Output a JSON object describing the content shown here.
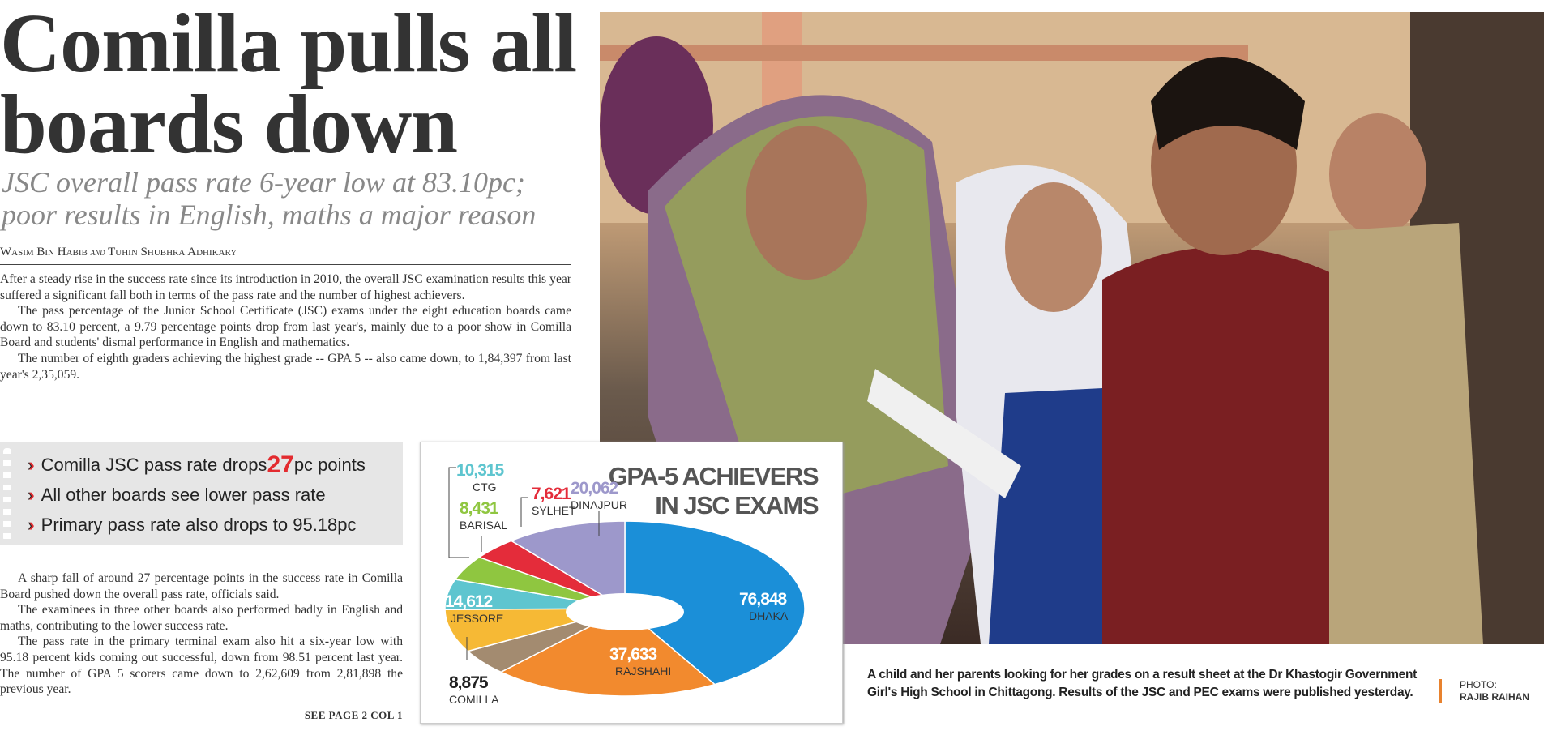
{
  "article": {
    "headline_line1": "Comilla pulls all",
    "headline_line2": "boards down",
    "subhead_line1": "JSC overall pass rate 6-year low at 83.10pc;",
    "subhead_line2": "poor results in English, maths a major reason",
    "byline": {
      "author1": "Wasim Bin Habib",
      "and": "and",
      "author2": "Tuhin Shubhra Adhikary"
    },
    "body_top": [
      "After a steady rise in the success rate since its introduction in 2010, the overall JSC examination results this year suffered a significant fall both in terms of the pass rate and the number of highest achievers.",
      "The pass percentage of the Junior School Certificate (JSC) exams under the eight education boards came down to 83.10 percent, a 9.79 percentage points drop from last year's, mainly due to a poor show in Comilla Board and students' dismal performance in English and mathematics.",
      "The number of eighth graders achieving the highest grade -- GPA 5 -- also came down, to 1,84,397 from last year's 2,35,059."
    ],
    "highlights": {
      "item1_before": "Comilla JSC pass rate drops ",
      "item1_number": "27",
      "item1_after": "pc points",
      "item2": "All other boards see lower pass rate",
      "item3": "Primary pass rate also drops to 95.18pc",
      "bullet_icon": "double-chevron-right-icon",
      "accent_color": "#e32b2f"
    },
    "body_bottom": [
      "A sharp fall of around 27 percentage points in the success rate in Comilla Board pushed down the overall pass rate, officials said.",
      "The examinees in three other boards also performed badly in English and maths, contributing to the lower success rate.",
      "The pass rate in the primary terminal exam also hit a six-year low with 95.18 percent kids coming out successful, down from 98.51 percent last year. The number of GPA 5 scorers came down to 2,62,609 from 2,81,898 the previous year."
    ],
    "see_page": "SEE PAGE 2 COL 1"
  },
  "chart_data": {
    "type": "pie",
    "variant": "donut",
    "title_line1": "GPA-5 ACHIEVERS",
    "title_line2": "IN JSC EXAMS",
    "slices": [
      {
        "label": "DHAKA",
        "value": 76848,
        "display": "76,848",
        "color": "#1b8fd8"
      },
      {
        "label": "RAJSHAHI",
        "value": 37633,
        "display": "37,633",
        "color": "#f28a2e"
      },
      {
        "label": "COMILLA",
        "value": 8875,
        "display": "8,875",
        "color": "#a38b70"
      },
      {
        "label": "JESSORE",
        "value": 14612,
        "display": "14,612",
        "color": "#f6b935"
      },
      {
        "label": "CTG",
        "value": 10315,
        "display": "10,315",
        "color": "#5ec5cf"
      },
      {
        "label": "BARISAL",
        "value": 8431,
        "display": "8,431",
        "color": "#8fc640"
      },
      {
        "label": "SYLHET",
        "value": 7621,
        "display": "7,621",
        "color": "#e42c3a"
      },
      {
        "label": "DINAJPUR",
        "value": 20062,
        "display": "20,062",
        "color": "#9d98cb"
      }
    ]
  },
  "photo": {
    "caption": "A child and her parents looking for her grades on a result sheet at the Dr Khastogir Government Girl's High School in Chittagong. Results of the JSC and PEC exams were published yesterday.",
    "credit_label": "PHOTO:",
    "credit_name": "RAJIB RAIHAN",
    "credit_accent": "#e8822e"
  }
}
